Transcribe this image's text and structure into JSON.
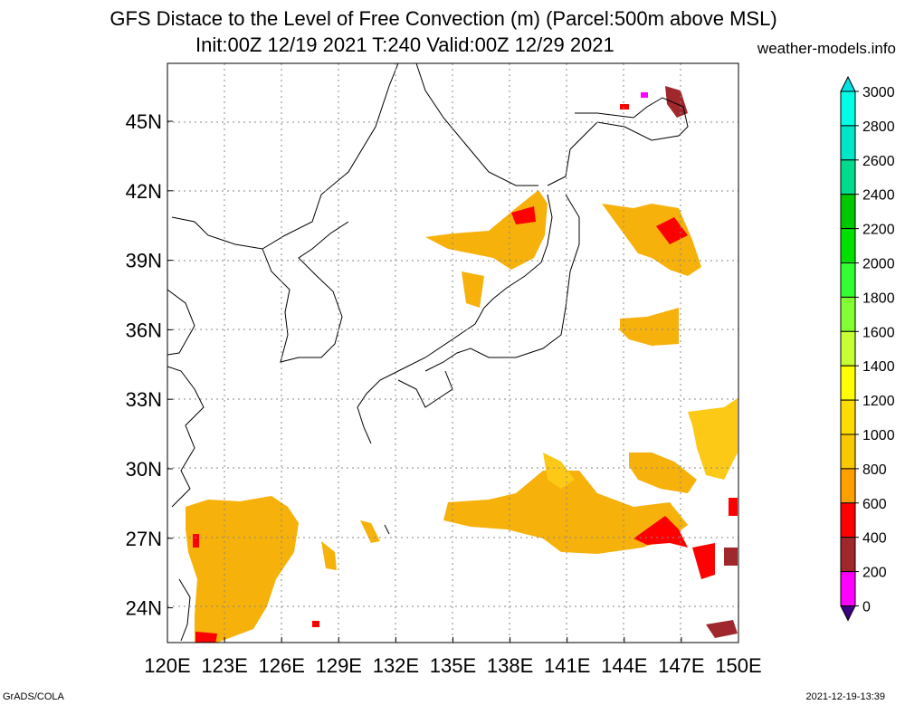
{
  "title_line1": "GFS Distace to the Level of Free Convection (m) (Parcel:500m above MSL)",
  "title_line2": "Init:00Z 12/19 2021 T:240 Valid:00Z 12/29 2021",
  "site": "weather-models.info",
  "footer_left": "GrADS/COLA",
  "footer_right": "2021-12-19-13:39",
  "map": {
    "lon_range": [
      120,
      150
    ],
    "lat_range": [
      22.5,
      47.5
    ],
    "lon_ticks": [
      "120E",
      "123E",
      "126E",
      "129E",
      "132E",
      "135E",
      "138E",
      "141E",
      "144E",
      "147E",
      "150E"
    ],
    "lat_ticks": [
      "24N",
      "27N",
      "30N",
      "33N",
      "36N",
      "39N",
      "42N",
      "45N"
    ],
    "grid": "dotted"
  },
  "colorbar": {
    "levels": [
      "0",
      "200",
      "400",
      "600",
      "800",
      "1000",
      "1200",
      "1400",
      "1600",
      "1800",
      "2000",
      "2200",
      "2400",
      "2600",
      "2800",
      "3000"
    ],
    "colors": [
      "#3c0082",
      "#ff00ff",
      "#a0282d",
      "#ff0000",
      "#ffa000",
      "#fac800",
      "#ffdc00",
      "#ffff00",
      "#c8ff32",
      "#82ff32",
      "#32ff32",
      "#00e100",
      "#00c800",
      "#00dc8c",
      "#00e6c8",
      "#00ffe6",
      "#00e1e1"
    ]
  }
}
